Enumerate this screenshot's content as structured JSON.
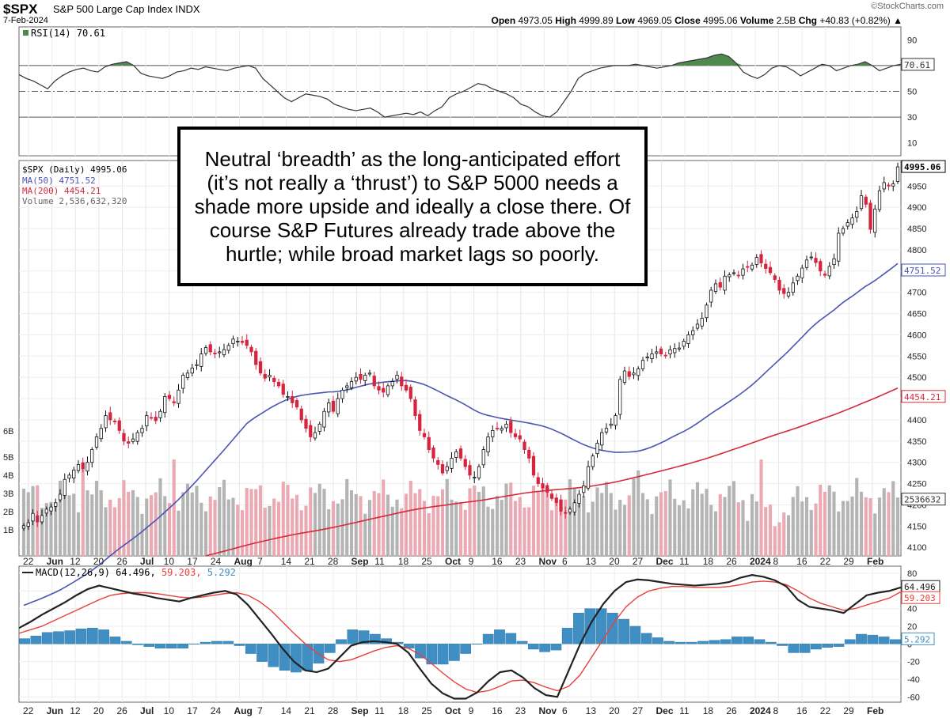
{
  "header": {
    "symbol": "$SPX",
    "title": "S&P 500 Large Cap Index",
    "exchange": "INDX",
    "date": "7-Feb-2024",
    "source": "©StockCharts.com",
    "open_label": "Open",
    "open": "4973.05",
    "high_label": "High",
    "high": "4999.89",
    "low_label": "Low",
    "low": "4969.05",
    "close_label": "Close",
    "close": "4995.06",
    "volume_label": "Volume",
    "volume": "2.5B",
    "chg_label": "Chg",
    "chg": "+40.83 (+0.82%)"
  },
  "legend": {
    "rsi": "RSI(14) 70.61",
    "price": "$SPX (Daily) 4995.06",
    "ma50": "MA(50) 4751.52",
    "ma200": "MA(200) 4454.21",
    "volume": "Volume 2,536,632,320",
    "macd_prefix": "MACD(12,26,9) 64.496,",
    "macd_signal": "59.203,",
    "macd_hist": "5.292"
  },
  "annotation": "Neutral ‘breadth’ as the long-anticipated effort (it’s not really a ‘thrust’) to S&P 5000 needs a shade more upside and ideally a close there. Of course S&P Futures already trade above the hurtle; while broad market lags so poorly.",
  "axis_tags": {
    "rsi": "70.61",
    "close": "4995.06",
    "ma50": "4751.52",
    "ma200": "4454.21",
    "volume": "2536632",
    "macd": "64.496",
    "signal": "59.203",
    "hist": "5.292"
  },
  "colors": {
    "up": "#ffffff",
    "down": "#d6243f",
    "ma50": "#4a55b0",
    "ma200": "#d42a3a",
    "vol_up": "#b4b4b4",
    "vol_down": "#eaa9b3",
    "macd": "#222222",
    "signal": "#e8403a",
    "hist": "#3f8fc4",
    "rsi_fill": "#4e8a4e"
  },
  "chart_data": [
    {
      "type": "line",
      "title": "RSI(14)",
      "ylim": [
        0,
        100
      ],
      "y_ticks": [
        "90",
        "50",
        "30",
        "10"
      ],
      "reference_lines": [
        70,
        50,
        30
      ],
      "series": [
        {
          "name": "RSI(14)",
          "values": [
            63,
            60,
            58,
            55,
            52,
            58,
            62,
            65,
            67,
            68,
            66,
            65,
            69,
            71,
            72,
            73,
            70,
            64,
            62,
            61,
            60,
            62,
            65,
            66,
            68,
            67,
            69,
            68,
            67,
            66,
            68,
            69,
            70,
            68,
            60,
            55,
            50,
            45,
            42,
            45,
            48,
            47,
            46,
            44,
            40,
            38,
            36,
            35,
            36,
            37,
            34,
            30,
            31,
            32,
            33,
            32,
            34,
            31,
            35,
            38,
            45,
            48,
            50,
            53,
            56,
            55,
            52,
            50,
            48,
            45,
            40,
            38,
            34,
            31,
            30,
            34,
            42,
            50,
            60,
            64,
            66,
            68,
            69,
            70,
            70,
            70,
            71,
            70,
            69,
            68,
            69,
            70,
            72,
            73,
            74,
            75,
            76,
            78,
            79,
            77,
            72,
            65,
            62,
            60,
            63,
            68,
            70,
            69,
            66,
            62,
            65,
            68,
            71,
            70,
            66,
            68,
            70,
            71,
            73,
            70,
            66,
            68,
            70,
            71
          ]
        }
      ]
    },
    {
      "type": "candlestick",
      "title": "$SPX (Daily)",
      "ylim": [
        4100,
        5000
      ],
      "y_ticks": [
        4950,
        4900,
        4850,
        4800,
        4750,
        4700,
        4650,
        4600,
        4550,
        4500,
        4450,
        4400,
        4350,
        4300,
        4250,
        4200,
        4150,
        4100
      ],
      "x_tick_labels": [
        "22",
        "Jun",
        "12",
        "20",
        "26",
        "Jul",
        "10",
        "17",
        "24",
        "Aug",
        "7",
        "14",
        "21",
        "28",
        "Sep",
        "11",
        "18",
        "25",
        "Oct",
        "9",
        "16",
        "23",
        "Nov",
        "6",
        "13",
        "20",
        "27",
        "Dec",
        "11",
        "18",
        "26",
        "2024",
        "8",
        "16",
        "22",
        "29",
        "Feb"
      ],
      "close": [
        4151,
        4158,
        4180,
        4160,
        4175,
        4190,
        4195,
        4205,
        4225,
        4260,
        4270,
        4282,
        4295,
        4285,
        4300,
        4330,
        4360,
        4380,
        4410,
        4400,
        4395,
        4375,
        4350,
        4345,
        4355,
        4370,
        4380,
        4410,
        4405,
        4398,
        4420,
        4455,
        4450,
        4440,
        4470,
        4505,
        4510,
        4522,
        4530,
        4555,
        4570,
        4560,
        4555,
        4560,
        4565,
        4575,
        4590,
        4585,
        4582,
        4575,
        4560,
        4530,
        4510,
        4498,
        4505,
        4490,
        4480,
        4460,
        4455,
        4440,
        4430,
        4400,
        4380,
        4360,
        4370,
        4390,
        4420,
        4440,
        4420,
        4450,
        4470,
        4480,
        4490,
        4500,
        4495,
        4505,
        4510,
        4480,
        4470,
        4465,
        4480,
        4490,
        4505,
        4480,
        4470,
        4450,
        4410,
        4375,
        4360,
        4330,
        4310,
        4295,
        4275,
        4290,
        4310,
        4325,
        4310,
        4290,
        4270,
        4265,
        4290,
        4330,
        4360,
        4375,
        4380,
        4380,
        4390,
        4370,
        4360,
        4355,
        4330,
        4310,
        4270,
        4250,
        4240,
        4230,
        4215,
        4205,
        4185,
        4180,
        4190,
        4205,
        4225,
        4245,
        4290,
        4315,
        4345,
        4370,
        4380,
        4390,
        4410,
        4495,
        4515,
        4502,
        4510,
        4520,
        4540,
        4548,
        4555,
        4560,
        4555,
        4552,
        4565,
        4568,
        4569,
        4585,
        4600,
        4610,
        4625,
        4639,
        4670,
        4705,
        4720,
        4712,
        4738,
        4741,
        4746,
        4740,
        4755,
        4759,
        4764,
        4782,
        4769,
        4756,
        4746,
        4730,
        4705,
        4697,
        4700,
        4722,
        4738,
        4757,
        4776,
        4783,
        4770,
        4750,
        4740,
        4761,
        4779,
        4839,
        4850,
        4864,
        4875,
        4890,
        4927,
        4907,
        4848,
        4896,
        4939,
        4958,
        4950,
        4955,
        4995
      ]
    },
    {
      "type": "bar",
      "title": "Volume",
      "y_ticks": [
        "6B",
        "5B",
        "4B",
        "3B",
        "2B",
        "1B"
      ],
      "ylim": [
        0,
        6.5
      ],
      "unit": "billions"
    },
    {
      "type": "line",
      "title": "MACD(12,26,9)",
      "ylim": [
        -60,
        80
      ],
      "y_ticks": [
        80,
        60,
        40,
        20,
        0,
        -20,
        -40,
        -60
      ],
      "series": [
        {
          "name": "MACD",
          "values": [
            18,
            25,
            33,
            40,
            47,
            55,
            62,
            66,
            63,
            60,
            57,
            55,
            52,
            50,
            48,
            52,
            55,
            58,
            60,
            56,
            44,
            28,
            12,
            -5,
            -20,
            -30,
            -32,
            -28,
            -15,
            -2,
            2,
            3,
            2,
            0,
            -10,
            -28,
            -45,
            -56,
            -62,
            -62,
            -55,
            -42,
            -32,
            -30,
            -38,
            -50,
            -58,
            -60,
            -30,
            0,
            25,
            45,
            60,
            70,
            73,
            72,
            70,
            68,
            67,
            66,
            67,
            68,
            70,
            75,
            78,
            76,
            72,
            65,
            50,
            42,
            40,
            38,
            35,
            45,
            55,
            58,
            60,
            64
          ]
        },
        {
          "name": "Signal",
          "values": [
            12,
            16,
            20,
            26,
            32,
            38,
            44,
            50,
            55,
            57,
            58,
            58,
            57,
            55,
            53,
            52,
            53,
            55,
            57,
            58,
            55,
            48,
            38,
            25,
            12,
            0,
            -10,
            -18,
            -20,
            -18,
            -13,
            -8,
            -4,
            -2,
            -5,
            -12,
            -22,
            -33,
            -43,
            -51,
            -55,
            -53,
            -48,
            -42,
            -41,
            -44,
            -49,
            -53,
            -48,
            -35,
            -15,
            5,
            25,
            42,
            53,
            60,
            63,
            65,
            65,
            64,
            64,
            64,
            65,
            67,
            70,
            71,
            70,
            67,
            60,
            52,
            46,
            42,
            38,
            40,
            44,
            48,
            52,
            59
          ]
        }
      ],
      "histogram": [
        6,
        9,
        13,
        14,
        15,
        17,
        18,
        16,
        8,
        3,
        -1,
        -3,
        -5,
        -5,
        -5,
        0,
        2,
        3,
        3,
        -2,
        -11,
        -20,
        -26,
        -30,
        -32,
        -30,
        -22,
        -10,
        5,
        16,
        15,
        11,
        6,
        2,
        -5,
        -16,
        -23,
        -23,
        -19,
        -11,
        0,
        11,
        16,
        12,
        3,
        -6,
        -9,
        -7,
        18,
        35,
        40,
        40,
        35,
        28,
        20,
        12,
        7,
        3,
        2,
        2,
        3,
        4,
        5,
        8,
        8,
        5,
        2,
        -2,
        -10,
        -10,
        -6,
        -4,
        -3,
        5,
        11,
        10,
        8,
        5
      ]
    }
  ]
}
